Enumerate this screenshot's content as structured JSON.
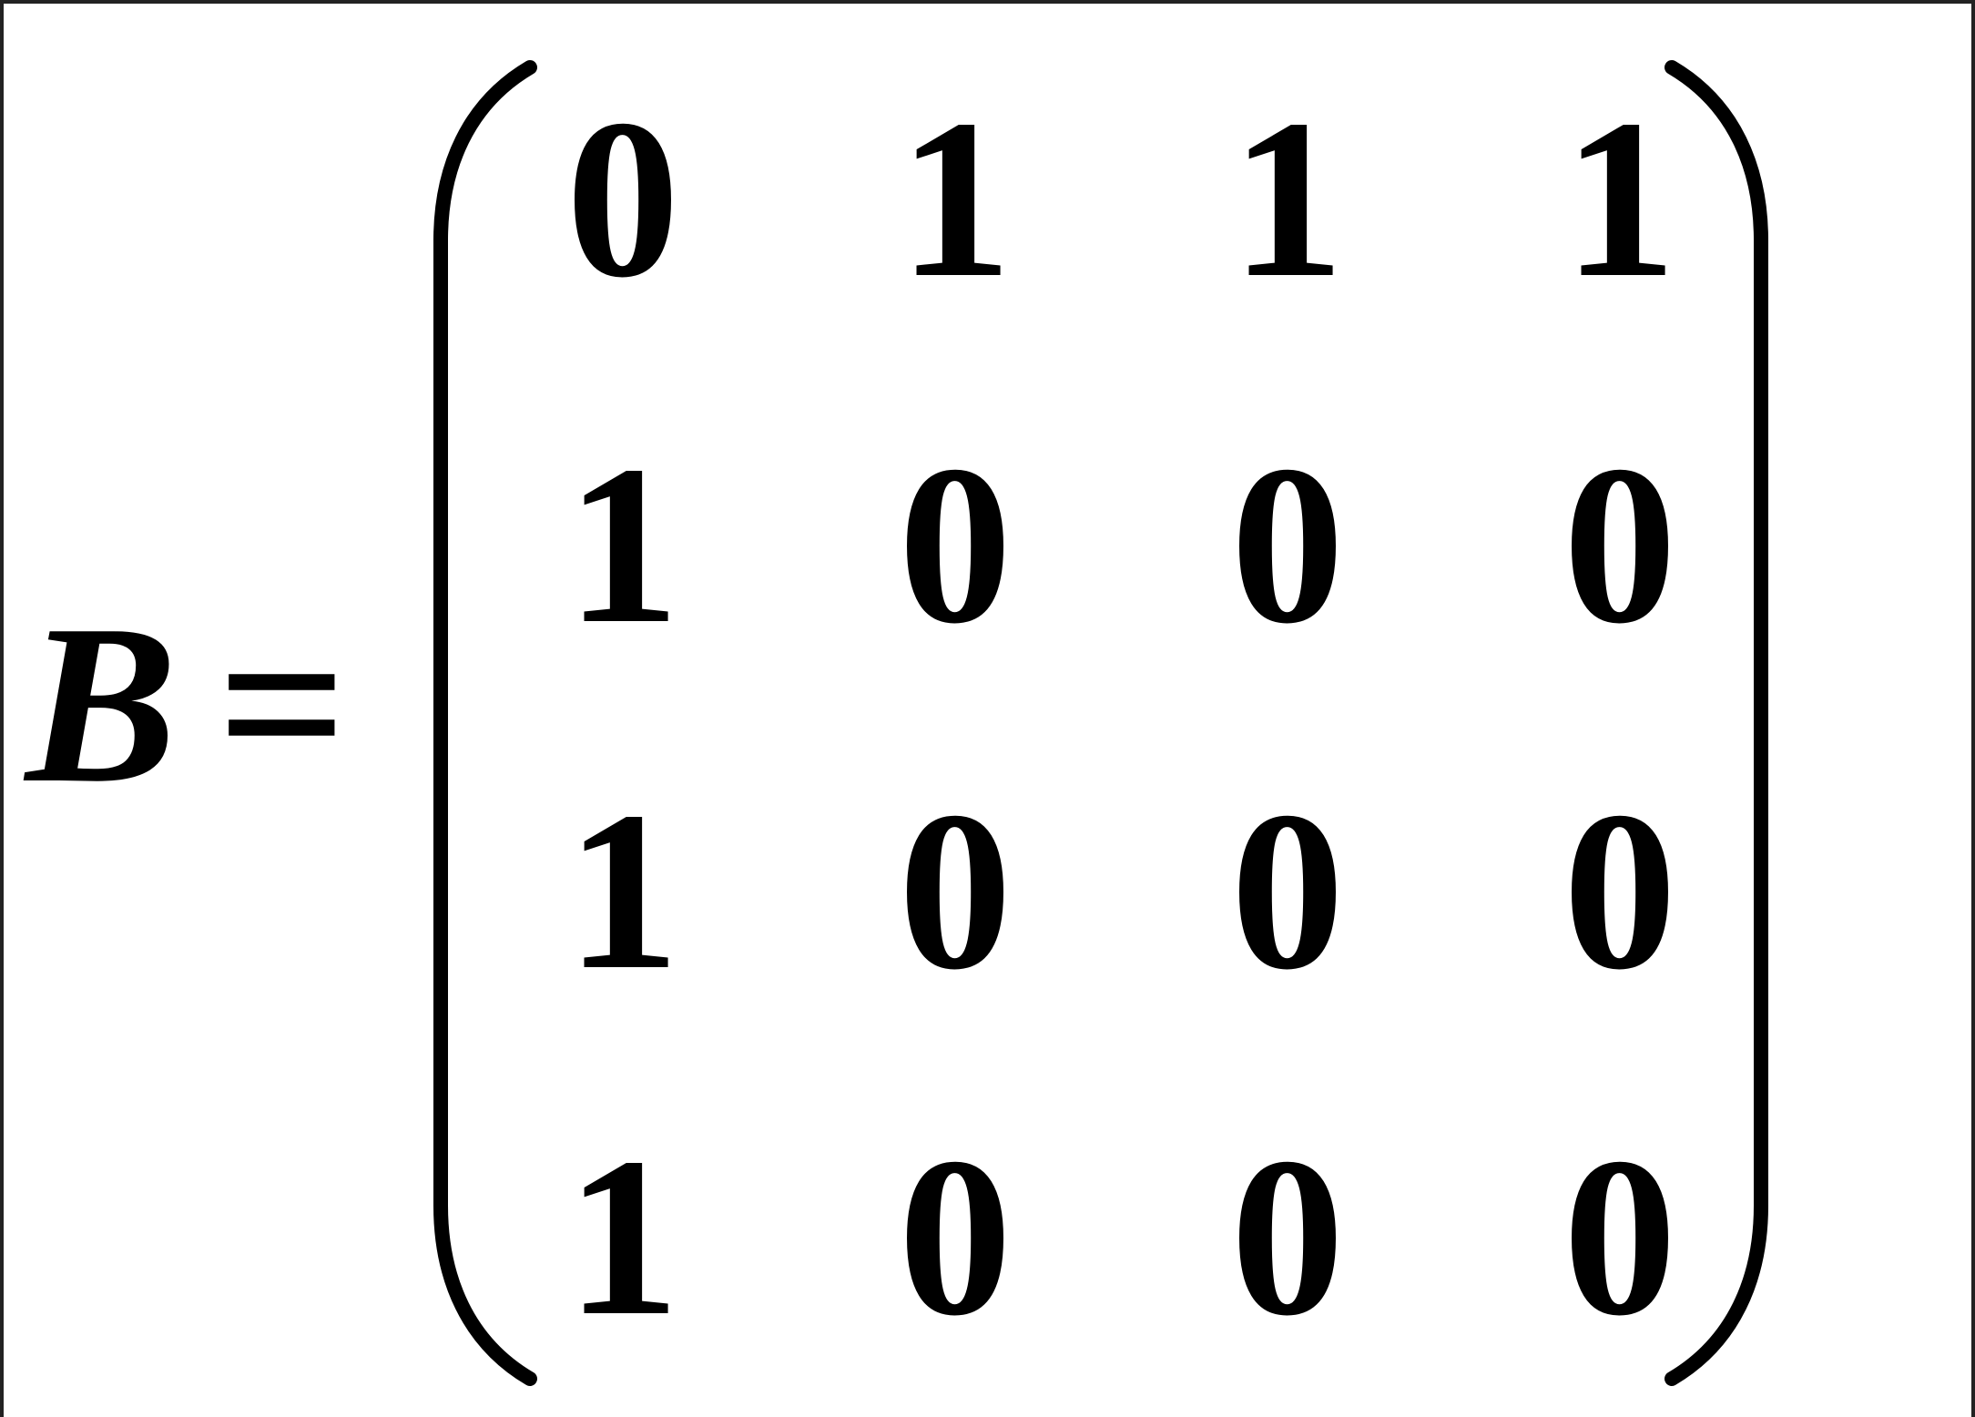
{
  "equation": {
    "variable": "B",
    "equals": "=",
    "matrix": [
      [
        "0",
        "1",
        "1",
        "1"
      ],
      [
        "1",
        "0",
        "0",
        "0"
      ],
      [
        "1",
        "0",
        "0",
        "0"
      ],
      [
        "1",
        "0",
        "0",
        "0"
      ]
    ]
  }
}
